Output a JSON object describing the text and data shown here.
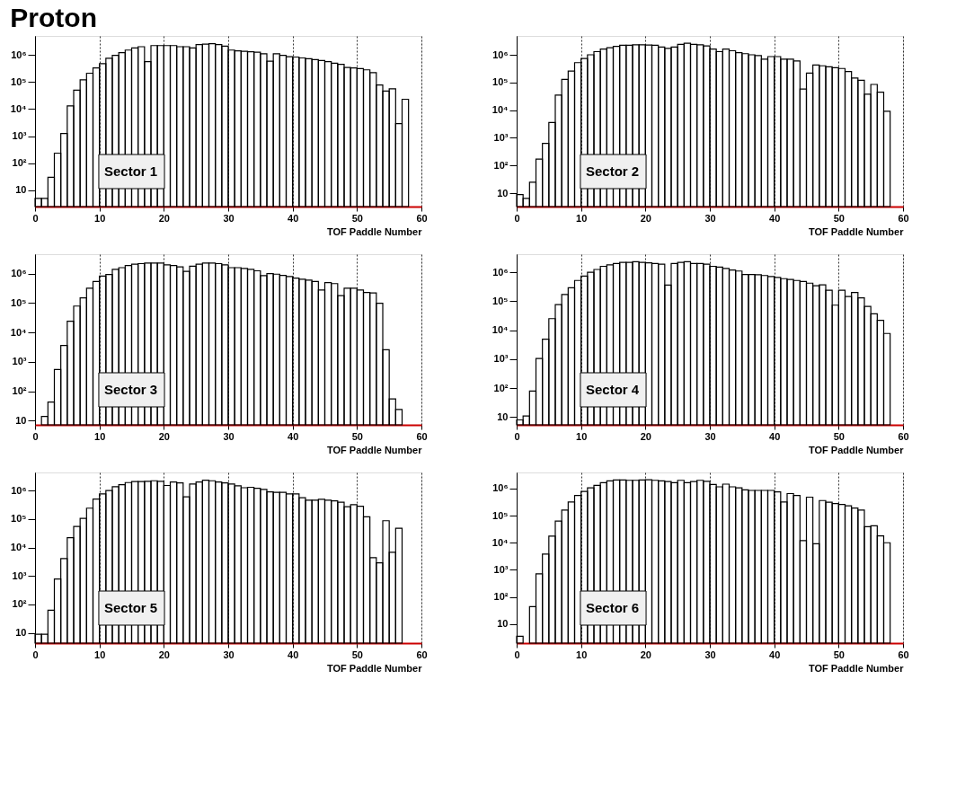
{
  "chart_data": [
    {
      "type": "histogram",
      "title": "Proton",
      "xlabel": "TOF Paddle Number",
      "annotations": [
        "Sector 1"
      ],
      "color": "#000000",
      "log": true,
      "grid": "x",
      "xlim": [
        0,
        60
      ],
      "xticks": [
        0,
        10,
        20,
        30,
        40,
        50,
        60
      ],
      "ylim": [
        2.5,
        5000000
      ],
      "yticks": [
        10,
        {
          "value": 100,
          "label": "10²"
        },
        {
          "value": 1000,
          "label": "10³"
        },
        {
          "value": 10000,
          "label": "10⁴"
        },
        {
          "value": 100000,
          "label": "10⁵"
        },
        {
          "value": 1000000,
          "label": "10⁶"
        }
      ],
      "bins": [
        0,
        1,
        2,
        3,
        4,
        5,
        6,
        7,
        8,
        9,
        10,
        11,
        12,
        13,
        14,
        15,
        16,
        17,
        18,
        19,
        20,
        21,
        22,
        23,
        24,
        25,
        26,
        27,
        28,
        29,
        30,
        31,
        32,
        33,
        34,
        35,
        36,
        37,
        38,
        39,
        40,
        41,
        42,
        43,
        44,
        45,
        46,
        47,
        48,
        49,
        50,
        51,
        52,
        53,
        54,
        55,
        56,
        57,
        58
      ],
      "values": [
        5,
        5,
        30,
        235,
        1250,
        13000,
        50000,
        120000,
        210000,
        330000,
        470000,
        750000,
        960000,
        1200000,
        1500000,
        1800000,
        2000000,
        560000,
        2200000,
        2200000,
        2200000,
        2200000,
        2000000,
        2000000,
        1800000,
        2400000,
        2500000,
        2600000,
        2400000,
        2100000,
        1500000,
        1400000,
        1350000,
        1300000,
        1250000,
        1100000,
        580000,
        1100000,
        960000,
        860000,
        830000,
        770000,
        720000,
        670000,
        620000,
        560000,
        490000,
        450000,
        340000,
        330000,
        310000,
        280000,
        220000,
        77000,
        46000,
        56000,
        2900,
        23000
      ]
    },
    {
      "type": "histogram",
      "xlabel": "TOF Paddle Number",
      "annotations": [
        "Sector 2"
      ],
      "color": "#000000",
      "log": true,
      "grid": "x",
      "xlim": [
        0,
        60
      ],
      "xticks": [
        0,
        10,
        20,
        30,
        40,
        50,
        60
      ],
      "ylim": [
        3.3,
        4800000
      ],
      "yticks": [
        10,
        {
          "value": 100,
          "label": "10²"
        },
        {
          "value": 1000,
          "label": "10³"
        },
        {
          "value": 10000,
          "label": "10⁴"
        },
        {
          "value": 100000,
          "label": "10⁵"
        },
        {
          "value": 1000000,
          "label": "10⁶"
        }
      ],
      "bins": [
        0,
        1,
        2,
        3,
        4,
        5,
        6,
        7,
        8,
        9,
        10,
        11,
        12,
        13,
        14,
        15,
        16,
        17,
        18,
        19,
        20,
        21,
        22,
        23,
        24,
        25,
        26,
        27,
        28,
        29,
        30,
        31,
        32,
        33,
        34,
        35,
        36,
        37,
        38,
        39,
        40,
        41,
        42,
        43,
        44,
        45,
        46,
        47,
        48,
        49,
        50,
        51,
        52,
        53,
        54,
        55,
        56,
        57,
        58
      ],
      "values": [
        9,
        6.5,
        25,
        170,
        630,
        3600,
        35000,
        130000,
        260000,
        520000,
        740000,
        1000000,
        1300000,
        1600000,
        1800000,
        2000000,
        2200000,
        2200000,
        2300000,
        2300000,
        2250000,
        2200000,
        1900000,
        1700000,
        1900000,
        2400000,
        2600000,
        2400000,
        2300000,
        2100000,
        1600000,
        1300000,
        1600000,
        1400000,
        1200000,
        1100000,
        1000000,
        940000,
        700000,
        860000,
        860000,
        700000,
        690000,
        600000,
        58000,
        220000,
        430000,
        400000,
        370000,
        340000,
        320000,
        250000,
        145000,
        120000,
        38000,
        85000,
        45000,
        9100
      ]
    },
    {
      "type": "histogram",
      "xlabel": "TOF Paddle Number",
      "annotations": [
        "Sector 3"
      ],
      "color": "#000000",
      "log": true,
      "grid": "x",
      "xlim": [
        0,
        60
      ],
      "xticks": [
        0,
        10,
        20,
        30,
        40,
        50,
        60
      ],
      "ylim": [
        7.2,
        4600000
      ],
      "yticks": [
        10,
        {
          "value": 100,
          "label": "10²"
        },
        {
          "value": 1000,
          "label": "10³"
        },
        {
          "value": 10000,
          "label": "10⁴"
        },
        {
          "value": 100000,
          "label": "10⁵"
        },
        {
          "value": 1000000,
          "label": "10⁶"
        }
      ],
      "bins": [
        0,
        1,
        2,
        3,
        4,
        5,
        6,
        7,
        8,
        9,
        10,
        11,
        12,
        13,
        14,
        15,
        16,
        17,
        18,
        19,
        20,
        21,
        22,
        23,
        24,
        25,
        26,
        27,
        28,
        29,
        30,
        31,
        32,
        33,
        34,
        35,
        36,
        37,
        38,
        39,
        40,
        41,
        42,
        43,
        44,
        45,
        46,
        47,
        48,
        49,
        50,
        51,
        52,
        53,
        54,
        55,
        56,
        57,
        58
      ],
      "values": [
        null,
        14,
        43,
        550,
        3600,
        24000,
        79000,
        150000,
        320000,
        540000,
        830000,
        930000,
        1400000,
        1600000,
        1900000,
        2100000,
        2200000,
        2300000,
        2300000,
        2300000,
        2000000,
        1900000,
        1700000,
        1200000,
        1800000,
        2100000,
        2300000,
        2300000,
        2200000,
        2000000,
        1600000,
        1600000,
        1500000,
        1400000,
        1250000,
        860000,
        1000000,
        960000,
        870000,
        800000,
        710000,
        650000,
        600000,
        540000,
        280000,
        500000,
        460000,
        180000,
        320000,
        320000,
        280000,
        230000,
        220000,
        98000,
        2600,
        55,
        24,
        null
      ]
    },
    {
      "type": "histogram",
      "xlabel": "TOF Paddle Number",
      "annotations": [
        "Sector 4"
      ],
      "color": "#000000",
      "log": true,
      "grid": "x",
      "xlim": [
        0,
        60
      ],
      "xticks": [
        0,
        10,
        20,
        30,
        40,
        50,
        60
      ],
      "ylim": [
        5.4,
        4200000
      ],
      "yticks": [
        10,
        {
          "value": 100,
          "label": "10²"
        },
        {
          "value": 1000,
          "label": "10³"
        },
        {
          "value": 10000,
          "label": "10⁴"
        },
        {
          "value": 100000,
          "label": "10⁵"
        },
        {
          "value": 1000000,
          "label": "10⁶"
        }
      ],
      "bins": [
        0,
        1,
        2,
        3,
        4,
        5,
        6,
        7,
        8,
        9,
        10,
        11,
        12,
        13,
        14,
        15,
        16,
        17,
        18,
        19,
        20,
        21,
        22,
        23,
        24,
        25,
        26,
        27,
        28,
        29,
        30,
        31,
        32,
        33,
        34,
        35,
        36,
        37,
        38,
        39,
        40,
        41,
        42,
        43,
        44,
        45,
        46,
        47,
        48,
        49,
        50,
        51,
        52,
        53,
        54,
        55,
        56,
        57,
        58
      ],
      "values": [
        8,
        11,
        79,
        1050,
        4900,
        25000,
        76000,
        170000,
        290000,
        520000,
        740000,
        1000000,
        1250000,
        1600000,
        1800000,
        2000000,
        2200000,
        2200000,
        2300000,
        2200000,
        2100000,
        2000000,
        1900000,
        360000,
        2000000,
        2200000,
        2300000,
        2000000,
        2000000,
        1900000,
        1600000,
        1500000,
        1350000,
        1200000,
        1100000,
        840000,
        840000,
        820000,
        770000,
        710000,
        660000,
        600000,
        560000,
        520000,
        480000,
        420000,
        340000,
        370000,
        240000,
        73000,
        240000,
        145000,
        200000,
        130000,
        66000,
        37000,
        22000,
        7700
      ]
    },
    {
      "type": "histogram",
      "xlabel": "TOF Paddle Number",
      "annotations": [
        "Sector 5"
      ],
      "color": "#000000",
      "log": true,
      "grid": "x",
      "xlim": [
        0,
        60
      ],
      "xticks": [
        0,
        10,
        20,
        30,
        40,
        50,
        60
      ],
      "ylim": [
        4.4,
        4300000
      ],
      "yticks": [
        10,
        {
          "value": 100,
          "label": "10²"
        },
        {
          "value": 1000,
          "label": "10³"
        },
        {
          "value": 10000,
          "label": "10⁴"
        },
        {
          "value": 100000,
          "label": "10⁵"
        },
        {
          "value": 1000000,
          "label": "10⁶"
        }
      ],
      "bins": [
        0,
        1,
        2,
        3,
        4,
        5,
        6,
        7,
        8,
        9,
        10,
        11,
        12,
        13,
        14,
        15,
        16,
        17,
        18,
        19,
        20,
        21,
        22,
        23,
        24,
        25,
        26,
        27,
        28,
        29,
        30,
        31,
        32,
        33,
        34,
        35,
        36,
        37,
        38,
        39,
        40,
        41,
        42,
        43,
        44,
        45,
        46,
        47,
        48,
        49,
        50,
        51,
        52,
        53,
        54,
        55,
        56,
        57,
        58
      ],
      "values": [
        9,
        9,
        63,
        780,
        4100,
        22000,
        55000,
        105000,
        240000,
        500000,
        760000,
        1000000,
        1350000,
        1600000,
        1900000,
        2050000,
        2050000,
        2100000,
        2200000,
        2100000,
        1500000,
        2000000,
        1850000,
        600000,
        1700000,
        2000000,
        2300000,
        2200000,
        2000000,
        1850000,
        1700000,
        1450000,
        1250000,
        1300000,
        1200000,
        1100000,
        900000,
        860000,
        860000,
        760000,
        760000,
        560000,
        460000,
        460000,
        490000,
        460000,
        430000,
        390000,
        270000,
        320000,
        280000,
        120000,
        4400,
        2900,
        87000,
        6800,
        47000,
        null
      ]
    },
    {
      "type": "histogram",
      "xlabel": "TOF Paddle Number",
      "annotations": [
        "Sector 6"
      ],
      "color": "#000000",
      "log": true,
      "grid": "x",
      "xlim": [
        0,
        60
      ],
      "xticks": [
        0,
        10,
        20,
        30,
        40,
        50,
        60
      ],
      "ylim": [
        2,
        3900000
      ],
      "yticks": [
        10,
        {
          "value": 100,
          "label": "10²"
        },
        {
          "value": 1000,
          "label": "10³"
        },
        {
          "value": 10000,
          "label": "10⁴"
        },
        {
          "value": 100000,
          "label": "10⁵"
        },
        {
          "value": 1000000,
          "label": "10⁶"
        }
      ],
      "bins": [
        0,
        1,
        2,
        3,
        4,
        5,
        6,
        7,
        8,
        9,
        10,
        11,
        12,
        13,
        14,
        15,
        16,
        17,
        18,
        19,
        20,
        21,
        22,
        23,
        24,
        25,
        26,
        27,
        28,
        29,
        30,
        31,
        32,
        33,
        34,
        35,
        36,
        37,
        38,
        39,
        40,
        41,
        42,
        43,
        44,
        45,
        46,
        47,
        48,
        49,
        50,
        51,
        52,
        53,
        54,
        55,
        56,
        57,
        58
      ],
      "values": [
        3.6,
        null,
        44,
        720,
        3800,
        17500,
        63000,
        160000,
        320000,
        550000,
        780000,
        1050000,
        1300000,
        1650000,
        1900000,
        2050000,
        2050000,
        2000000,
        2000000,
        2050000,
        2100000,
        2000000,
        1900000,
        1800000,
        1650000,
        2000000,
        1650000,
        1800000,
        2000000,
        1850000,
        1400000,
        1150000,
        1450000,
        1150000,
        1050000,
        890000,
        850000,
        850000,
        850000,
        850000,
        750000,
        320000,
        650000,
        550000,
        12000,
        480000,
        9200,
        360000,
        310000,
        280000,
        260000,
        230000,
        190000,
        160000,
        39000,
        42000,
        18000,
        10000
      ]
    }
  ]
}
